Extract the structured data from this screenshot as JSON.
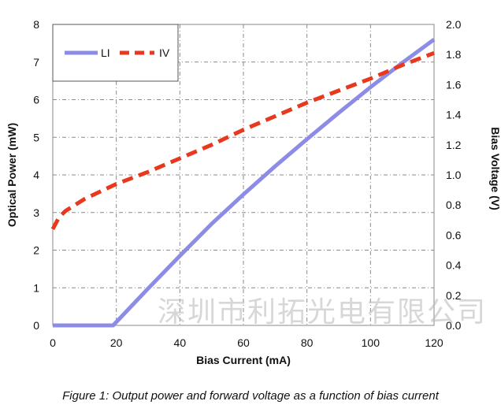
{
  "caption": "Figure 1: Output power and forward voltage as a function of bias current",
  "watermark": "深圳市利拓光电有限公司",
  "chart_data": {
    "type": "line",
    "xlabel": "Bias Current (mA)",
    "ylabel": "Optical Power (mW)",
    "y2label": "Bias Voltage (V)",
    "xlim": [
      0,
      120
    ],
    "ylim": [
      0,
      8
    ],
    "y2lim": [
      0,
      2.0
    ],
    "x_ticks": [
      "0",
      "20",
      "40",
      "60",
      "80",
      "100",
      "120"
    ],
    "y_ticks": [
      "0",
      "1",
      "2",
      "3",
      "4",
      "5",
      "6",
      "7",
      "8"
    ],
    "y2_ticks": [
      "0.0",
      "0.2",
      "0.4",
      "0.6",
      "0.8",
      "1.0",
      "1.2",
      "1.4",
      "1.6",
      "1.8",
      "2.0"
    ],
    "grid": true,
    "legend_position": "top-left",
    "series": [
      {
        "name": "LI",
        "axis": "left",
        "color": "#8c8ce6",
        "style": "solid",
        "x": [
          0,
          10,
          19,
          30,
          40,
          50,
          60,
          70,
          80,
          90,
          100,
          110,
          120
        ],
        "y": [
          0,
          0,
          0,
          0.98,
          1.85,
          2.7,
          3.48,
          4.23,
          4.95,
          5.65,
          6.33,
          6.98,
          7.6
        ]
      },
      {
        "name": "IV",
        "axis": "right",
        "color": "#e8381e",
        "style": "dashed",
        "x": [
          0,
          1,
          2,
          4,
          7,
          10,
          15,
          20,
          30,
          40,
          50,
          60,
          70,
          80,
          90,
          100,
          110,
          120
        ],
        "y": [
          0.64,
          0.68,
          0.72,
          0.76,
          0.8,
          0.84,
          0.89,
          0.94,
          1.02,
          1.11,
          1.2,
          1.3,
          1.39,
          1.48,
          1.56,
          1.64,
          1.73,
          1.81
        ]
      }
    ]
  }
}
